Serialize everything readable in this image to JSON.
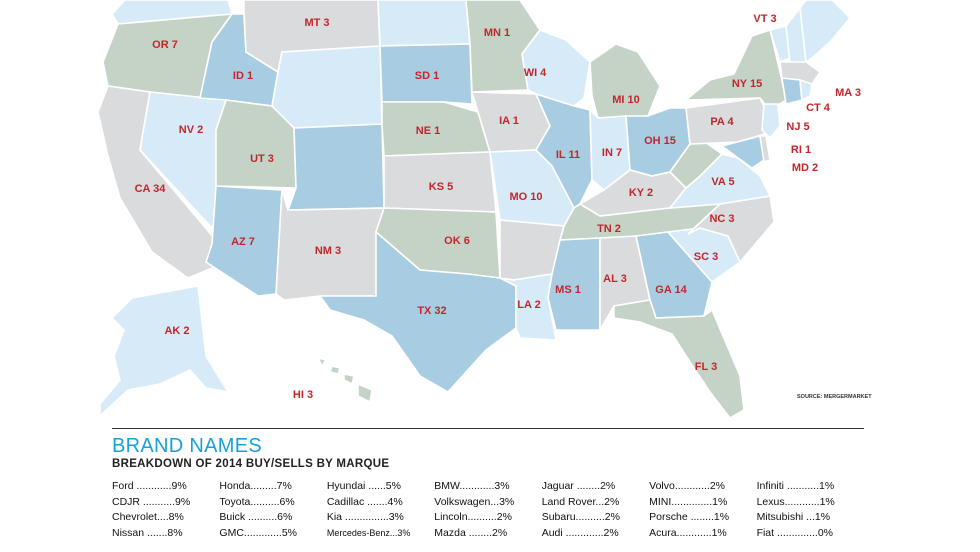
{
  "states": [
    {
      "id": "wa",
      "label": "",
      "fill": "light"
    },
    {
      "id": "or",
      "label": "OR 7",
      "fill": "green"
    },
    {
      "id": "ca",
      "label": "CA 34",
      "fill": "gray"
    },
    {
      "id": "nv",
      "label": "NV 2",
      "fill": "light"
    },
    {
      "id": "id",
      "label": "ID 1",
      "fill": "medium"
    },
    {
      "id": "mt",
      "label": "MT 3",
      "fill": "gray"
    },
    {
      "id": "wy",
      "label": "",
      "fill": "light"
    },
    {
      "id": "ut",
      "label": "UT 3",
      "fill": "green"
    },
    {
      "id": "az",
      "label": "AZ 7",
      "fill": "medium"
    },
    {
      "id": "co",
      "label": "",
      "fill": "medium"
    },
    {
      "id": "nm",
      "label": "NM 3",
      "fill": "gray"
    },
    {
      "id": "nd",
      "label": "",
      "fill": "light"
    },
    {
      "id": "sd",
      "label": "SD 1",
      "fill": "medium"
    },
    {
      "id": "ne",
      "label": "NE 1",
      "fill": "green"
    },
    {
      "id": "ks",
      "label": "KS 5",
      "fill": "gray"
    },
    {
      "id": "ok",
      "label": "OK 6",
      "fill": "green"
    },
    {
      "id": "tx",
      "label": "TX 32",
      "fill": "medium"
    },
    {
      "id": "mn",
      "label": "MN 1",
      "fill": "green"
    },
    {
      "id": "ia",
      "label": "IA 1",
      "fill": "gray"
    },
    {
      "id": "mo",
      "label": "MO 10",
      "fill": "light"
    },
    {
      "id": "ar",
      "label": "",
      "fill": "gray"
    },
    {
      "id": "la",
      "label": "LA 2",
      "fill": "light"
    },
    {
      "id": "wi",
      "label": "WI 4",
      "fill": "light"
    },
    {
      "id": "il",
      "label": "IL 11",
      "fill": "medium"
    },
    {
      "id": "mi",
      "label": "MI 10",
      "fill": "green"
    },
    {
      "id": "in",
      "label": "IN 7",
      "fill": "light"
    },
    {
      "id": "oh",
      "label": "OH 15",
      "fill": "medium"
    },
    {
      "id": "ky",
      "label": "KY 2",
      "fill": "gray"
    },
    {
      "id": "tn",
      "label": "TN 2",
      "fill": "green"
    },
    {
      "id": "ms",
      "label": "MS 1",
      "fill": "medium"
    },
    {
      "id": "al",
      "label": "AL 3",
      "fill": "gray"
    },
    {
      "id": "ga",
      "label": "GA 14",
      "fill": "medium"
    },
    {
      "id": "fl",
      "label": "FL 3",
      "fill": "green"
    },
    {
      "id": "sc",
      "label": "SC 3",
      "fill": "light"
    },
    {
      "id": "nc",
      "label": "NC 3",
      "fill": "gray"
    },
    {
      "id": "va",
      "label": "VA 5",
      "fill": "light"
    },
    {
      "id": "wv",
      "label": "",
      "fill": "green"
    },
    {
      "id": "pa",
      "label": "PA 4",
      "fill": "gray"
    },
    {
      "id": "ny",
      "label": "NY 15",
      "fill": "green"
    },
    {
      "id": "vt",
      "label": "VT 3",
      "fill": "light"
    },
    {
      "id": "nh",
      "label": "",
      "fill": "light"
    },
    {
      "id": "me",
      "label": "",
      "fill": "light"
    },
    {
      "id": "ma",
      "label": "MA 3",
      "fill": "gray"
    },
    {
      "id": "ct",
      "label": "CT 4",
      "fill": "medium"
    },
    {
      "id": "ri",
      "label": "RI 1",
      "fill": "light"
    },
    {
      "id": "nj",
      "label": "NJ 5",
      "fill": "light"
    },
    {
      "id": "md",
      "label": "MD 2",
      "fill": "medium"
    },
    {
      "id": "de",
      "label": "",
      "fill": "gray"
    },
    {
      "id": "ak",
      "label": "AK 2",
      "fill": "light"
    },
    {
      "id": "hi",
      "label": "HI 3",
      "fill": "green"
    }
  ],
  "colors": {
    "light": "#d6ebf7",
    "medium": "#a8cde2",
    "gray": "#dadbdc",
    "green": "#c5d3c6",
    "label": "#c0272d",
    "title": "#1aa0d8"
  },
  "source": "SOURCE: MERGERMARKET",
  "legend": {
    "title": "BRAND NAMES",
    "subtitle": "BREAKDOWN OF 2014 BUY/SELLS BY MARQUE",
    "columns": [
      [
        "Ford ............9%",
        "CDJR ...........9%",
        "Chevrolet....8%",
        "Nissan .......8%"
      ],
      [
        "Honda.........7%",
        "Toyota..........6%",
        "Buick ..........6%",
        "GMC.............5%"
      ],
      [
        "Hyundai ......5%",
        "Cadillac .......4%",
        "Kia ...............3%",
        "Mercedes-Benz...3%"
      ],
      [
        "BMW............3%",
        "Volkswagen...3%",
        "Lincoln..........2%",
        "Mazda ........2%"
      ],
      [
        "Jaguar ........2%",
        "Land Rover...2%",
        "Subaru..........2%",
        "Audi .............2%"
      ],
      [
        "Volvo............2%",
        "MINI..............1%",
        "Porsche ........1%",
        "Acura............1%"
      ],
      [
        "Infiniti ...........1%",
        "Lexus............1%",
        "Mitsubishi ...1%",
        "Fiat ..............0%"
      ]
    ]
  }
}
